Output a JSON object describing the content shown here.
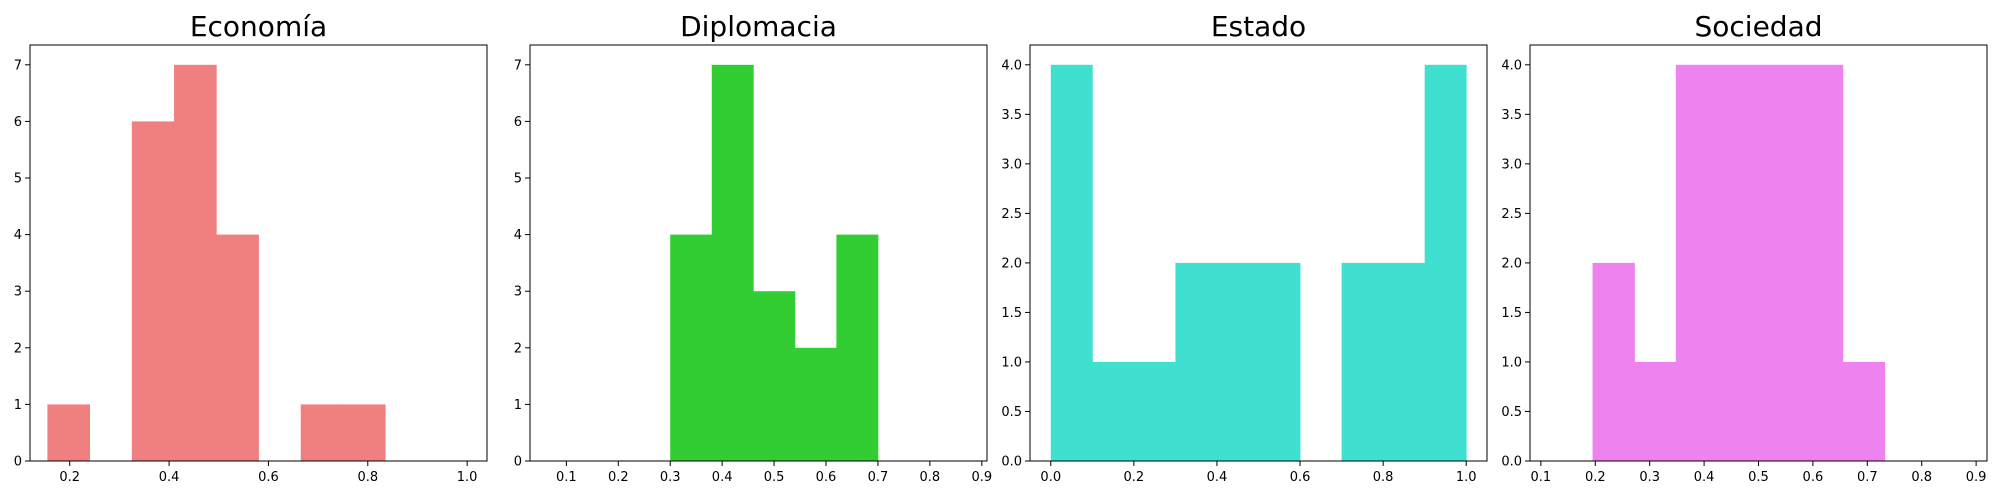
{
  "chart_data": [
    {
      "type": "bar",
      "title": "Economía",
      "color": "#f08080",
      "bins": [
        {
          "x0": 0.155,
          "x1": 0.24,
          "count": 1
        },
        {
          "x0": 0.24,
          "x1": 0.325,
          "count": 0
        },
        {
          "x0": 0.325,
          "x1": 0.41,
          "count": 6
        },
        {
          "x0": 0.41,
          "x1": 0.495,
          "count": 7
        },
        {
          "x0": 0.495,
          "x1": 0.58,
          "count": 4
        },
        {
          "x0": 0.58,
          "x1": 0.665,
          "count": 0
        },
        {
          "x0": 0.665,
          "x1": 0.75,
          "count": 1
        },
        {
          "x0": 0.75,
          "x1": 0.835,
          "count": 1
        }
      ],
      "xlim": [
        0.12,
        1.04
      ],
      "ylim": [
        0,
        7.35
      ],
      "xticks": [
        "0.2",
        "0.4",
        "0.6",
        "0.8",
        "1.0"
      ],
      "yticks": [
        "0",
        "1",
        "2",
        "3",
        "4",
        "5",
        "6",
        "7"
      ]
    },
    {
      "type": "bar",
      "title": "Diplomacia",
      "color": "#32cd32",
      "bins": [
        {
          "x0": 0.3,
          "x1": 0.38,
          "count": 4
        },
        {
          "x0": 0.38,
          "x1": 0.46,
          "count": 7
        },
        {
          "x0": 0.46,
          "x1": 0.54,
          "count": 3
        },
        {
          "x0": 0.54,
          "x1": 0.62,
          "count": 2
        },
        {
          "x0": 0.62,
          "x1": 0.7,
          "count": 4
        }
      ],
      "xlim": [
        0.03,
        0.91
      ],
      "ylim": [
        0,
        7.35
      ],
      "xticks": [
        "0.1",
        "0.2",
        "0.3",
        "0.4",
        "0.5",
        "0.6",
        "0.7",
        "0.8",
        "0.9"
      ],
      "yticks": [
        "0",
        "1",
        "2",
        "3",
        "4",
        "5",
        "6",
        "7"
      ]
    },
    {
      "type": "bar",
      "title": "Estado",
      "color": "#40e0d0",
      "bins": [
        {
          "x0": 0.0,
          "x1": 0.1,
          "count": 4
        },
        {
          "x0": 0.1,
          "x1": 0.2,
          "count": 1
        },
        {
          "x0": 0.2,
          "x1": 0.3,
          "count": 1
        },
        {
          "x0": 0.3,
          "x1": 0.4,
          "count": 2
        },
        {
          "x0": 0.4,
          "x1": 0.5,
          "count": 2
        },
        {
          "x0": 0.5,
          "x1": 0.6,
          "count": 2
        },
        {
          "x0": 0.6,
          "x1": 0.7,
          "count": 0
        },
        {
          "x0": 0.7,
          "x1": 0.8,
          "count": 2
        },
        {
          "x0": 0.8,
          "x1": 0.9,
          "count": 2
        },
        {
          "x0": 0.9,
          "x1": 1.0,
          "count": 4
        }
      ],
      "xlim": [
        -0.05,
        1.05
      ],
      "ylim": [
        0,
        4.2
      ],
      "xticks": [
        "0.0",
        "0.2",
        "0.4",
        "0.6",
        "0.8",
        "1.0"
      ],
      "yticks": [
        "0.0",
        "0.5",
        "1.0",
        "1.5",
        "2.0",
        "2.5",
        "3.0",
        "3.5",
        "4.0"
      ]
    },
    {
      "type": "bar",
      "title": "Sociedad",
      "color": "#ee82ee",
      "bins": [
        {
          "x0": 0.195,
          "x1": 0.272,
          "count": 2
        },
        {
          "x0": 0.272,
          "x1": 0.348,
          "count": 1
        },
        {
          "x0": 0.348,
          "x1": 0.425,
          "count": 4
        },
        {
          "x0": 0.425,
          "x1": 0.502,
          "count": 4
        },
        {
          "x0": 0.502,
          "x1": 0.578,
          "count": 4
        },
        {
          "x0": 0.578,
          "x1": 0.655,
          "count": 4
        },
        {
          "x0": 0.655,
          "x1": 0.732,
          "count": 1
        }
      ],
      "xlim": [
        0.08,
        0.92
      ],
      "ylim": [
        0,
        4.2
      ],
      "xticks": [
        "0.1",
        "0.2",
        "0.3",
        "0.4",
        "0.5",
        "0.6",
        "0.7",
        "0.8",
        "0.9"
      ],
      "yticks": [
        "0.0",
        "0.5",
        "1.0",
        "1.5",
        "2.0",
        "2.5",
        "3.0",
        "3.5",
        "4.0"
      ]
    }
  ]
}
